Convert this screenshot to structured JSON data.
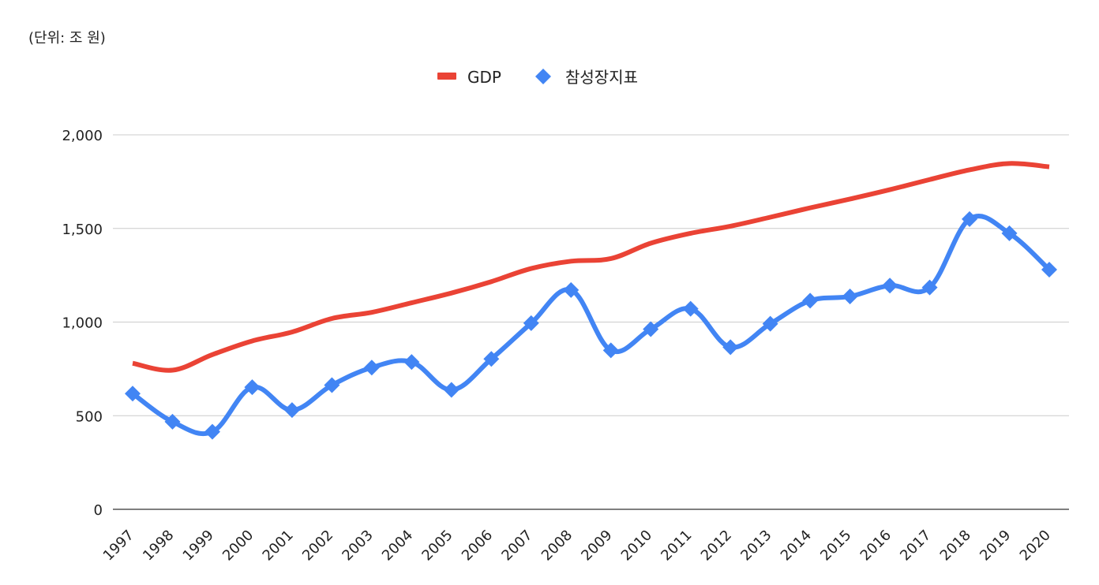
{
  "unit_note": "(단위: 조 원)",
  "colors": {
    "gdp": "#ea4335",
    "indicator": "#4285f4",
    "grid": "#cccccc",
    "axis": "#333333",
    "text": "#222222"
  },
  "chart_data": {
    "type": "line",
    "title": "",
    "xlabel": "",
    "ylabel": "",
    "ylim": [
      0,
      2000
    ],
    "yticks": [
      0,
      500,
      1000,
      1500,
      2000
    ],
    "ytick_labels": [
      "0",
      "500",
      "1,000",
      "1,500",
      "2,000"
    ],
    "grid": true,
    "legend_position": "top-center",
    "categories": [
      "1997",
      "1998",
      "1999",
      "2000",
      "2001",
      "2002",
      "2003",
      "2004",
      "2005",
      "2006",
      "2007",
      "2008",
      "2009",
      "2010",
      "2011",
      "2012",
      "2013",
      "2014",
      "2015",
      "2016",
      "2017",
      "2018",
      "2019",
      "2020"
    ],
    "series": [
      {
        "name": "GDP",
        "marker": "none",
        "values": [
          780,
          743,
          826,
          899,
          947,
          1019,
          1052,
          1103,
          1155,
          1216,
          1286,
          1325,
          1339,
          1421,
          1474,
          1512,
          1560,
          1610,
          1657,
          1707,
          1761,
          1813,
          1847,
          1829
        ]
      },
      {
        "name": "참성장지표",
        "marker": "diamond",
        "values": [
          618,
          468,
          414,
          652,
          530,
          663,
          757,
          787,
          638,
          803,
          994,
          1171,
          849,
          962,
          1071,
          866,
          991,
          1114,
          1137,
          1195,
          1185,
          1550,
          1474,
          1280
        ]
      }
    ]
  }
}
